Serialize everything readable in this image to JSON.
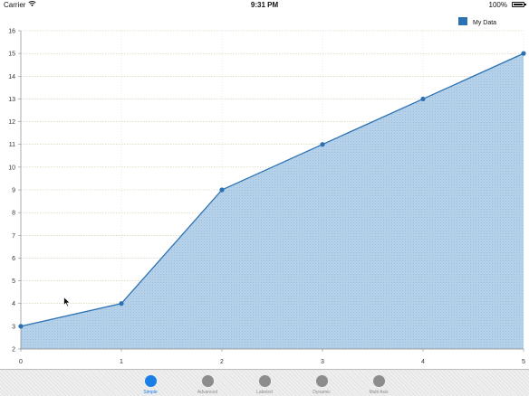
{
  "status_bar": {
    "carrier": "Carrier",
    "time": "9:31 PM",
    "battery": "100%"
  },
  "tabs": [
    {
      "label": "Simple",
      "active": true
    },
    {
      "label": "Advanced",
      "active": false
    },
    {
      "label": "Labeled",
      "active": false
    },
    {
      "label": "Dynamic",
      "active": false
    },
    {
      "label": "Multi Axis",
      "active": false
    }
  ],
  "colors": {
    "line": "#2c72b3",
    "fill": "#a8c8e6",
    "accent": "#1a7ee6"
  },
  "chart_data": {
    "type": "area",
    "x": [
      0,
      1,
      2,
      3,
      4,
      5
    ],
    "series": [
      {
        "name": "My Data",
        "values": [
          3,
          4,
          9,
          11,
          13,
          15
        ]
      }
    ],
    "xlim": [
      0,
      5
    ],
    "ylim": [
      2,
      16
    ],
    "yticks": [
      2,
      3,
      4,
      5,
      6,
      7,
      8,
      9,
      10,
      11,
      12,
      13,
      14,
      15,
      16
    ],
    "xticks": [
      0,
      1,
      2,
      3,
      4,
      5
    ],
    "grid": true,
    "legend": "top-right",
    "title": "",
    "xlabel": "",
    "ylabel": ""
  }
}
